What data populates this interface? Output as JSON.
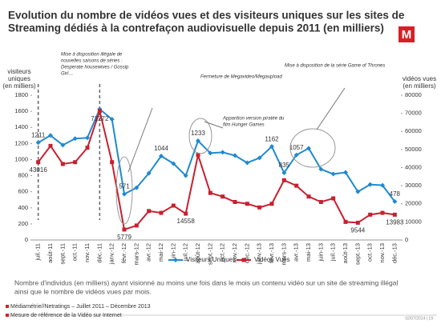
{
  "chart_data": {
    "type": "line",
    "title": [
      "Evolution du nombre de vidéos vues et des visiteurs uniques sur les sites de",
      "Streaming dédiés à la contrefaçon audiovisuelle depuis 2011 (en milliers)"
    ],
    "y_label": [
      "visiteurs",
      "uniques",
      "(en milliers)"
    ],
    "y2_label": [
      "vidéos vues",
      "(en milliers)"
    ],
    "categories": [
      "juil.-11",
      "août-11",
      "sept.-11",
      "oct.-11",
      "nov.-11",
      "déc.-11",
      "janv.-12",
      "févr.-12",
      "mars-12",
      "avr.-12",
      "mai-12",
      "juin-12",
      "juil.-12",
      "août-12",
      "sept.-12",
      "oct.-12",
      "nov.-12",
      "déc.-12",
      "janv.-13",
      "févr.-13",
      "mars-13",
      "avr.-13",
      "mai-13",
      "juin-13",
      "juil.-13",
      "août-13",
      "sept.-13",
      "oct.-13",
      "nov.-13",
      "déc.-13"
    ],
    "series": [
      {
        "name": "Visiteurs Uniques",
        "color": "#1f8ad0",
        "values": [
          1211,
          1300,
          1180,
          1260,
          1270,
          1627,
          1500,
          571,
          650,
          830,
          1044,
          950,
          800,
          1233,
          1080,
          1090,
          1050,
          960,
          1020,
          1162,
          835,
          1057,
          1140,
          880,
          820,
          840,
          600,
          690,
          680,
          478
        ],
        "labeled": [
          0,
          7,
          10,
          13,
          19,
          20,
          21,
          29
        ]
      },
      {
        "name": "Vidéos Vues",
        "color": "#c8202f",
        "axis": "y2",
        "values": [
          43016,
          52000,
          42000,
          43000,
          51000,
          71272,
          43000,
          5779,
          8000,
          16000,
          15000,
          19000,
          14558,
          47000,
          26000,
          24000,
          21000,
          20000,
          18000,
          20000,
          33000,
          30000,
          24000,
          21000,
          23000,
          10000,
          9544,
          14000,
          15000,
          13983
        ],
        "labeled": [
          0,
          5,
          7,
          12,
          26,
          29
        ]
      }
    ],
    "ylim": [
      0,
      1800
    ],
    "yticks": [
      0,
      200,
      400,
      600,
      800,
      1000,
      1200,
      1400,
      1600,
      1800
    ],
    "y2lim": [
      0,
      80000
    ],
    "y2ticks": [
      0,
      10000,
      20000,
      30000,
      40000,
      50000,
      60000,
      70000,
      80000
    ],
    "annotations": [
      {
        "lines": [
          "Mise à disposition illégale de",
          "nouvelles saisons de séries :",
          "Desperate housewives / Gossip",
          "Girl…"
        ]
      },
      {
        "lines": [
          "Fermeture de Megavideo/Megaupload"
        ]
      },
      {
        "lines": [
          "Apparition version piratée du",
          "film Hunger Games"
        ]
      },
      {
        "lines": [
          "Mise à disposition de la série Game of Thrones"
        ]
      }
    ],
    "note": [
      "Nombre d'individus (en milliers) ayant visionné au moins une fois dans le mois un contenu vidéo sur un site de streaming illégal",
      "ainsi que le nombre de vidéos vues par mois."
    ],
    "source": [
      "Médiamétrie//Netratings – Juillet 2011 – Décembre 2013",
      "Mesure de référence de la Vidéo sur Internet"
    ],
    "footer": "02/07/2014  |  19"
  }
}
